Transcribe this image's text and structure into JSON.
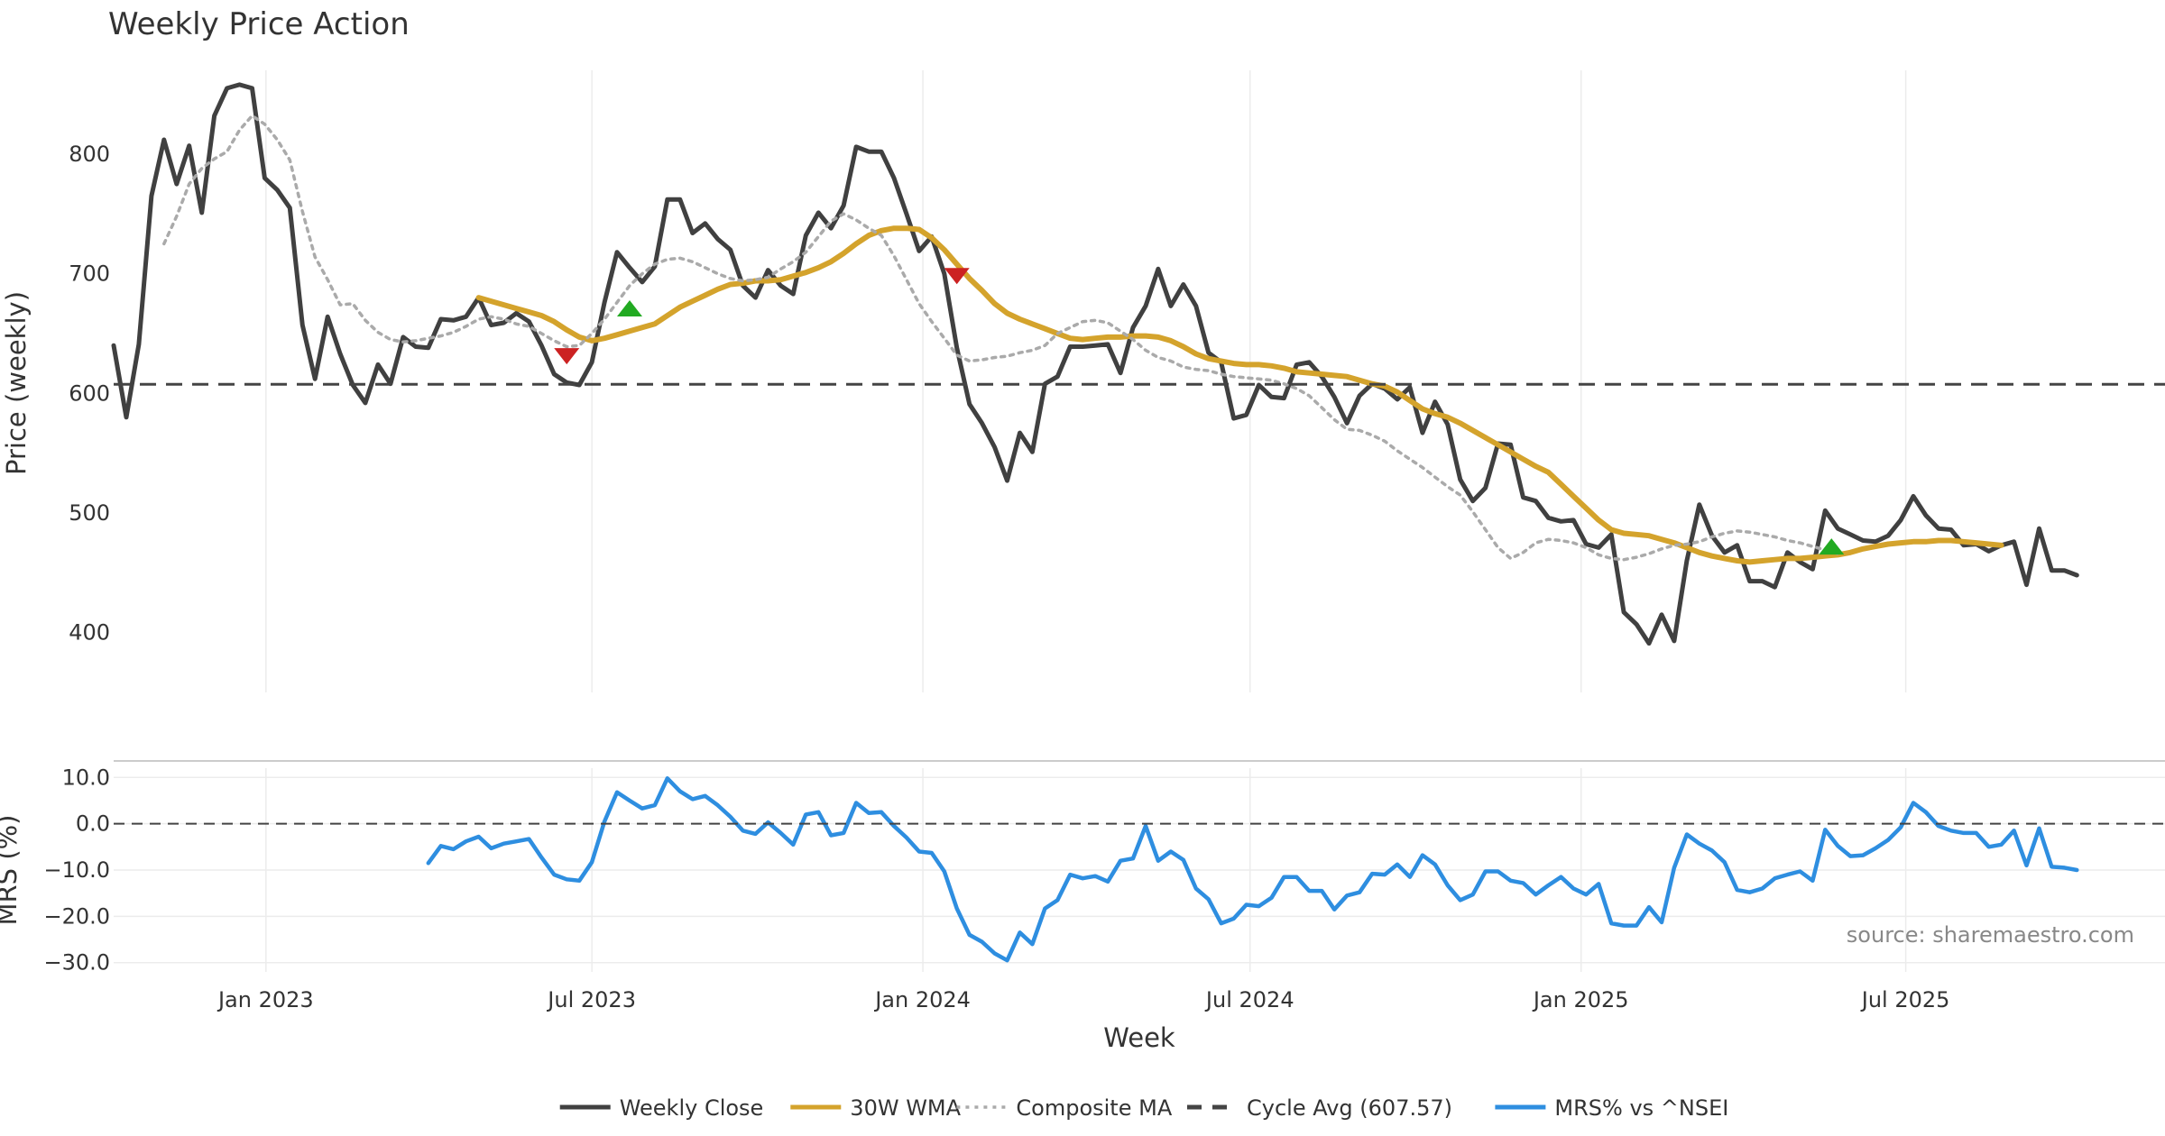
{
  "chart_data": [
    {
      "type": "line",
      "title": "Weekly Price Action",
      "ylabel": "Price (weekly)",
      "xlabel": "",
      "x_unit": "weeks since 2022-10-10",
      "xlim": [
        0,
        163
      ],
      "ylim": [
        350,
        870
      ],
      "yticks": [
        400,
        500,
        600,
        700,
        800
      ],
      "x_ticks": [
        {
          "label": "Jan 2023",
          "x": 12.1
        },
        {
          "label": "Jul 2023",
          "x": 38.0
        },
        {
          "label": "Jan 2024",
          "x": 64.3
        },
        {
          "label": "Jul 2024",
          "x": 90.3
        },
        {
          "label": "Jan 2025",
          "x": 116.6
        },
        {
          "label": "Jul 2025",
          "x": 142.4
        }
      ],
      "series": [
        {
          "name": "Weekly Close",
          "color": "#404040",
          "style": "solid",
          "x_start": 0,
          "values": [
            640,
            580,
            641,
            765,
            812,
            775,
            807,
            751,
            832,
            855,
            858,
            855,
            780,
            770,
            755,
            657,
            612,
            664,
            633,
            607,
            592,
            624,
            608,
            647,
            639,
            638,
            662,
            661,
            664,
            680,
            657,
            659,
            667,
            660,
            640,
            616,
            609,
            607,
            626,
            676,
            718,
            705,
            693,
            706,
            762,
            762,
            734,
            742,
            729,
            720,
            690,
            680,
            703,
            690,
            683,
            732,
            751,
            738,
            757,
            806,
            802,
            802,
            780,
            750,
            719,
            731,
            700,
            638,
            591,
            575,
            555,
            527,
            567,
            551,
            608,
            614,
            639,
            639,
            640,
            641,
            617,
            655,
            673,
            704,
            673,
            691,
            673,
            634,
            626,
            579,
            582,
            607,
            597,
            596,
            624,
            626,
            614,
            597,
            575,
            598,
            608,
            604,
            595,
            605,
            567,
            593,
            574,
            528,
            510,
            521,
            558,
            557,
            513,
            510,
            496,
            493,
            494,
            474,
            471,
            482,
            417,
            407,
            391,
            415,
            393,
            460,
            507,
            481,
            467,
            473,
            443,
            443,
            438,
            467,
            459,
            453,
            502,
            487,
            482,
            477,
            476,
            481,
            494,
            514,
            498,
            487,
            486,
            473,
            474,
            468,
            473,
            476,
            440,
            487,
            452,
            452,
            448
          ]
        },
        {
          "name": "30W WMA",
          "color": "#d4a32c",
          "style": "solid",
          "x_start": 29,
          "values": [
            680,
            677,
            674,
            671,
            668,
            665,
            660,
            653,
            647,
            644,
            646,
            649,
            652,
            655,
            658,
            665,
            672,
            677,
            682,
            687,
            691,
            692,
            694,
            694,
            695,
            698,
            701,
            705,
            710,
            717,
            725,
            732,
            736,
            738,
            738,
            737,
            730,
            720,
            708,
            696,
            686,
            675,
            667,
            662,
            658,
            654,
            650,
            646,
            645,
            646,
            647,
            647,
            648,
            648,
            647,
            644,
            639,
            633,
            629,
            627,
            625,
            624,
            624,
            623,
            621,
            618,
            617,
            616,
            615,
            614,
            611,
            608,
            606,
            601,
            594,
            587,
            583,
            580,
            575,
            569,
            563,
            557,
            551,
            545,
            539,
            534,
            524,
            514,
            504,
            494,
            486,
            483,
            482,
            481,
            478,
            475,
            471,
            467,
            464,
            462,
            460,
            459,
            460,
            461,
            462,
            462,
            463,
            464,
            465,
            467,
            470,
            472,
            474,
            475,
            476,
            476,
            477,
            477,
            476,
            475,
            474,
            473
          ]
        },
        {
          "name": "Composite MA",
          "color": "#aaaaaa",
          "style": "dotted",
          "x_start": 4,
          "values": [
            725,
            748,
            775,
            788,
            796,
            802,
            820,
            832,
            825,
            812,
            795,
            752,
            714,
            695,
            674,
            675,
            661,
            651,
            645,
            643,
            644,
            646,
            648,
            651,
            656,
            662,
            664,
            662,
            658,
            656,
            650,
            644,
            639,
            640,
            650,
            662,
            676,
            690,
            700,
            708,
            712,
            713,
            710,
            705,
            700,
            696,
            694,
            695,
            697,
            704,
            710,
            718,
            731,
            744,
            750,
            745,
            738,
            732,
            715,
            695,
            675,
            660,
            646,
            632,
            627,
            628,
            630,
            631,
            634,
            636,
            640,
            650,
            655,
            660,
            661,
            659,
            652,
            645,
            636,
            630,
            627,
            622,
            620,
            619,
            616,
            614,
            613,
            612,
            611,
            608,
            604,
            598,
            588,
            578,
            570,
            569,
            565,
            560,
            552,
            545,
            538,
            530,
            522,
            515,
            501,
            486,
            471,
            462,
            467,
            475,
            478,
            477,
            475,
            471,
            465,
            462,
            461,
            463,
            466,
            470,
            473,
            474,
            476,
            480,
            483,
            485,
            484,
            482,
            480,
            477,
            475,
            472,
            469,
            466
          ]
        },
        {
          "name": "Cycle Avg (607.57)",
          "color": "#444444",
          "style": "dashed",
          "value": 607.57
        }
      ],
      "markers": [
        {
          "type": "sell",
          "symbol": "triangle-down",
          "color": "#cc2222",
          "x": 36.0,
          "y": 631
        },
        {
          "type": "buy",
          "symbol": "triangle-up",
          "color": "#22aa22",
          "x": 41.0,
          "y": 671
        },
        {
          "type": "sell",
          "symbol": "triangle-down",
          "color": "#cc2222",
          "x": 67.0,
          "y": 698
        },
        {
          "type": "buy",
          "symbol": "triangle-up",
          "color": "#22aa22",
          "x": 136.5,
          "y": 472
        }
      ]
    },
    {
      "type": "line",
      "title": "",
      "ylabel": "MRS (%)",
      "xlabel": "Week",
      "xlim": [
        0,
        163
      ],
      "ylim": [
        -32,
        12
      ],
      "yticks": [
        10.0,
        0.0,
        -10.0,
        -20.0,
        -30.0
      ],
      "ytick_labels": [
        "10.0",
        "0.0",
        "−10.0",
        "−20.0",
        "−30.0"
      ],
      "series": [
        {
          "name": "MRS% vs ^NSEI",
          "color": "#2e8ee0",
          "style": "solid",
          "x_start": 25,
          "values": [
            -8.5,
            -4.8,
            -5.5,
            -3.8,
            -2.8,
            -5.3,
            -4.3,
            -3.8,
            -3.3,
            -7.3,
            -11.0,
            -12.0,
            -12.3,
            -8.3,
            0.5,
            6.8,
            5.0,
            3.3,
            4.0,
            9.8,
            7.0,
            5.3,
            6.0,
            4.0,
            1.5,
            -1.5,
            -2.2,
            0.3,
            -2.0,
            -4.5,
            2.0,
            2.5,
            -2.5,
            -2.0,
            4.5,
            2.3,
            2.5,
            -0.5,
            -3.0,
            -6.0,
            -6.3,
            -10.3,
            -18.3,
            -24.0,
            -25.5,
            -28.0,
            -29.5,
            -23.5,
            -26.0,
            -18.3,
            -16.5,
            -11.0,
            -11.8,
            -11.3,
            -12.5,
            -8.0,
            -7.5,
            -0.5,
            -8.0,
            -6.0,
            -7.8,
            -14.0,
            -16.3,
            -21.5,
            -20.5,
            -17.5,
            -17.8,
            -16.0,
            -11.5,
            -11.5,
            -14.5,
            -14.5,
            -18.5,
            -15.5,
            -14.8,
            -10.8,
            -11.0,
            -8.8,
            -11.5,
            -6.8,
            -8.8,
            -13.3,
            -16.5,
            -15.3,
            -10.3,
            -10.3,
            -12.3,
            -12.8,
            -15.3,
            -13.3,
            -11.5,
            -14.0,
            -15.3,
            -13.0,
            -21.5,
            -22.0,
            -22.0,
            -18.0,
            -21.3,
            -9.5,
            -2.3,
            -4.3,
            -5.8,
            -8.3,
            -14.3,
            -14.8,
            -14.0,
            -11.8,
            -11.0,
            -10.3,
            -12.3,
            -1.3,
            -4.8,
            -7.0,
            -6.8,
            -5.3,
            -3.5,
            -0.8,
            4.5,
            2.5,
            -0.5,
            -1.5,
            -2.0,
            -2.0,
            -5.0,
            -4.5,
            -1.5,
            -9.0,
            -1.0,
            -9.3,
            -9.5,
            -10.0
          ]
        },
        {
          "name": "Zero line",
          "color": "#444444",
          "style": "dashed",
          "value": 0.0
        }
      ],
      "x_ticks": [
        {
          "label": "Jan 2023",
          "x": 12.1
        },
        {
          "label": "Jul 2023",
          "x": 38.0
        },
        {
          "label": "Jan 2024",
          "x": 64.3
        },
        {
          "label": "Jul 2024",
          "x": 90.3
        },
        {
          "label": "Jan 2025",
          "x": 116.6
        },
        {
          "label": "Jul 2025",
          "x": 142.4
        }
      ]
    }
  ],
  "legend": {
    "placement": "bottom-center",
    "entries": [
      {
        "label": "Weekly Close",
        "color": "#404040",
        "style": "solid"
      },
      {
        "label": "30W WMA",
        "color": "#d4a32c",
        "style": "solid"
      },
      {
        "label": "Composite MA",
        "color": "#aaaaaa",
        "style": "dotted"
      },
      {
        "label": "Cycle Avg (607.57)",
        "color": "#444444",
        "style": "dashed"
      },
      {
        "label": "MRS% vs ^NSEI",
        "color": "#2e8ee0",
        "style": "solid"
      }
    ]
  },
  "source_text": "source: sharemaestro.com"
}
